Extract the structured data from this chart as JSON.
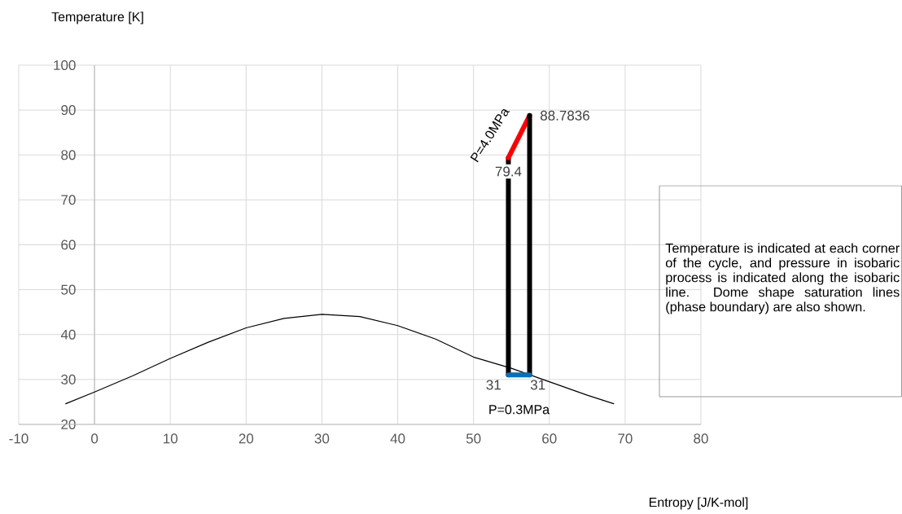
{
  "chart_data": {
    "type": "line",
    "xlabel": "Entropy [J/K-mol]",
    "ylabel": "Temperature [K]",
    "xlim": [
      -10,
      80
    ],
    "ylim": [
      20,
      100
    ],
    "xticks": [
      -10,
      0,
      10,
      20,
      30,
      40,
      50,
      60,
      70,
      80
    ],
    "yticks": [
      20,
      30,
      40,
      50,
      60,
      70,
      80,
      90,
      100
    ],
    "grid": true,
    "marker": "none",
    "line_style": "solid",
    "series": [
      {
        "color": "#000000",
        "x": [
          -3.8,
          0,
          5,
          10,
          15,
          20,
          25,
          30,
          35,
          40,
          45,
          50,
          55,
          60,
          65,
          68.5
        ],
        "values": [
          24.6,
          27.2,
          30.8,
          34.7,
          38.3,
          41.5,
          43.6,
          44.5,
          44,
          42,
          39,
          35,
          32.5,
          29.5,
          26.5,
          24.6
        ]
      },
      {
        "color": "#000000",
        "x": [
          54.6,
          54.6
        ],
        "values": [
          31,
          79.4
        ],
        "value_labels": [
          "31",
          "79.4"
        ]
      },
      {
        "color": "#ff0000",
        "x": [
          54.6,
          57.4
        ],
        "values": [
          79.4,
          88.7836
        ],
        "value_labels": [
          null,
          "88.7836"
        ]
      },
      {
        "color": "#000000",
        "x": [
          57.4,
          57.4
        ],
        "values": [
          88.7836,
          31
        ],
        "value_labels": [
          null,
          "31"
        ]
      },
      {
        "color": "#0070c0",
        "x": [
          57.4,
          54.6
        ],
        "values": [
          31,
          31
        ]
      }
    ],
    "annotations": [
      {
        "text": "P=4.0MPa",
        "x": 56,
        "y": 84
      },
      {
        "text": "P=0.3MPa",
        "x": 56,
        "y": 31
      },
      "Temperature is indicated at each corner of the cycle, and pressure in isobaric process is indicated along the isobaric line. Dome shape saturation lines (phase boundary) are also shown."
    ]
  }
}
